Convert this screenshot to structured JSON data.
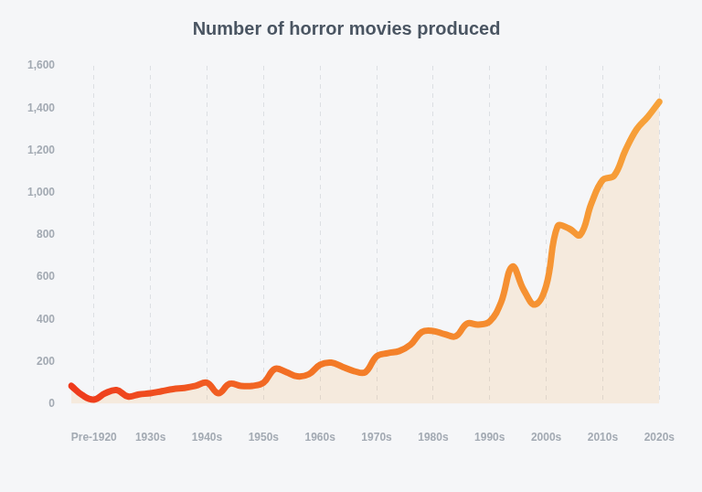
{
  "chart_data": {
    "type": "line",
    "title": "Number of horror movies produced",
    "categories": [
      null,
      null,
      "Pre-1920",
      null,
      null,
      null,
      null,
      "1930s",
      null,
      null,
      null,
      null,
      "1940s",
      null,
      null,
      null,
      null,
      "1950s",
      null,
      null,
      null,
      null,
      "1960s",
      null,
      null,
      null,
      null,
      "1970s",
      null,
      null,
      null,
      null,
      "1980s",
      null,
      null,
      null,
      null,
      "1990s",
      null,
      null,
      null,
      null,
      "2000s",
      null,
      null,
      null,
      null,
      "2010s",
      null,
      null,
      null,
      null,
      "2020s"
    ],
    "values": [
      85,
      40,
      20,
      50,
      65,
      35,
      45,
      50,
      60,
      70,
      75,
      85,
      100,
      50,
      95,
      85,
      85,
      100,
      165,
      150,
      130,
      140,
      185,
      195,
      175,
      155,
      150,
      225,
      240,
      250,
      280,
      340,
      345,
      330,
      320,
      380,
      375,
      390,
      480,
      650,
      540,
      470,
      560,
      840,
      830,
      800,
      950,
      1060,
      1080,
      1200,
      1300,
      1360,
      1430
    ],
    "color": "#f7a23a",
    "ylim": [
      0,
      1600
    ],
    "yticks": [
      0,
      200,
      400,
      600,
      800,
      {
        "value": 1000,
        "label": "1,000"
      },
      {
        "value": 1200,
        "label": "1,200"
      },
      {
        "value": 1400,
        "label": "1,400"
      },
      {
        "value": 1600,
        "label": "1,600"
      }
    ],
    "grid": "x"
  }
}
